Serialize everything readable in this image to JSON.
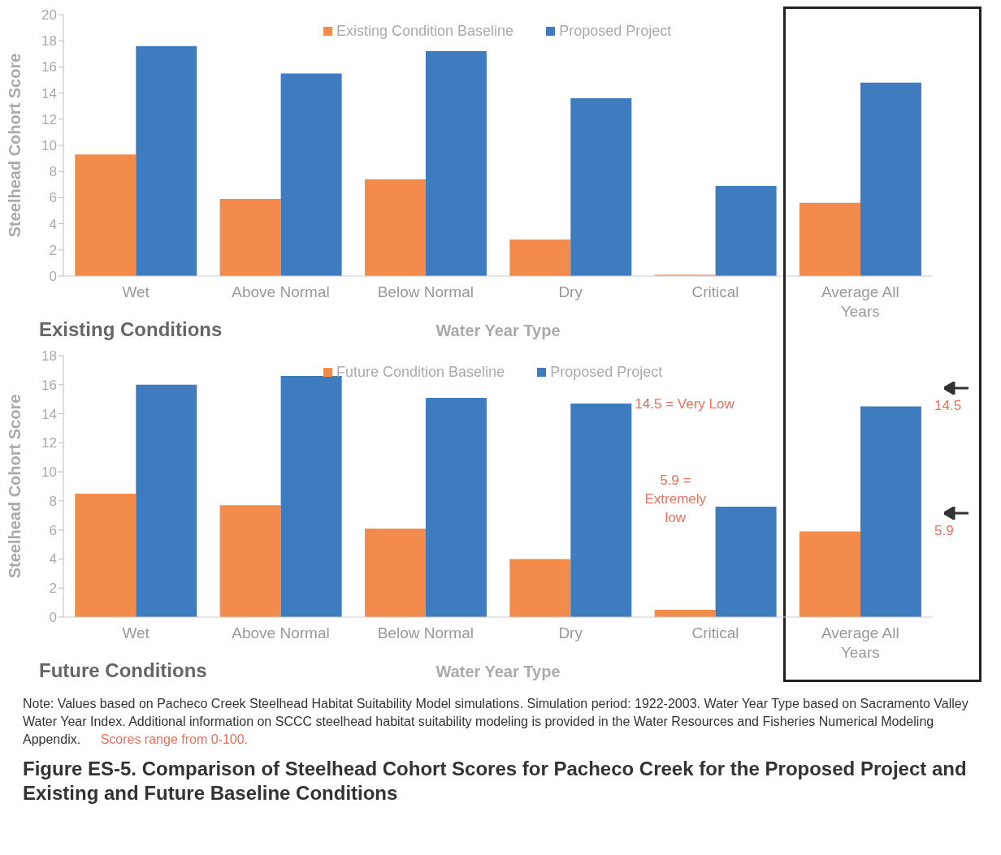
{
  "chart_data": [
    {
      "type": "bar",
      "title": "Existing Conditions",
      "xlabel": "Water Year Type",
      "ylabel": "Steelhead Cohort Score",
      "categories": [
        "Wet",
        "Above Normal",
        "Below Normal",
        "Dry",
        "Critical",
        "Average All Years"
      ],
      "series": [
        {
          "name": "Existing Condition Baseline",
          "color": "#f28b4c",
          "values": [
            9.3,
            5.9,
            7.4,
            2.8,
            0.1,
            5.6
          ]
        },
        {
          "name": "Proposed Project",
          "color": "#3f7bbf",
          "values": [
            17.6,
            15.5,
            17.2,
            13.6,
            6.9,
            14.8
          ]
        }
      ],
      "ylim": [
        0,
        20
      ],
      "yticks": [
        0,
        2,
        4,
        6,
        8,
        10,
        12,
        14,
        16,
        18,
        20
      ],
      "legend": "top"
    },
    {
      "type": "bar",
      "title": "Future Conditions",
      "xlabel": "Water Year Type",
      "ylabel": "Steelhead Cohort Score",
      "categories": [
        "Wet",
        "Above Normal",
        "Below Normal",
        "Dry",
        "Critical",
        "Average All Years"
      ],
      "series": [
        {
          "name": "Future Condition Baseline",
          "color": "#f28b4c",
          "values": [
            8.5,
            7.7,
            6.1,
            4.0,
            0.5,
            5.9
          ]
        },
        {
          "name": "Proposed Project",
          "color": "#3f7bbf",
          "values": [
            16.0,
            16.6,
            15.1,
            14.7,
            7.6,
            14.5
          ]
        }
      ],
      "ylim": [
        0,
        18
      ],
      "yticks": [
        0,
        2,
        4,
        6,
        8,
        10,
        12,
        14,
        16,
        18
      ],
      "legend": "top",
      "annotations": [
        "14.5 = Very Low",
        "5.9 = Extremely low",
        "14.5",
        "5.9",
        "Note:  Values based on Pacheco Creek Steelhead Habitat Suitability Model simulations. Simulation period: 1922-2003. Water Year Type based on Sacramento Valley Water Year Index. Additional information on SCCC steelhead habitat suitability modeling is provided in the Water Resources and Fisheries Numerical Modeling Appendix.",
        "Scores range from 0-100.",
        "Figure ES-5. Comparison of Steelhead Cohort Scores for Pacheco Creek for the Proposed Project and Existing and Future Baseline Conditions"
      ]
    }
  ]
}
